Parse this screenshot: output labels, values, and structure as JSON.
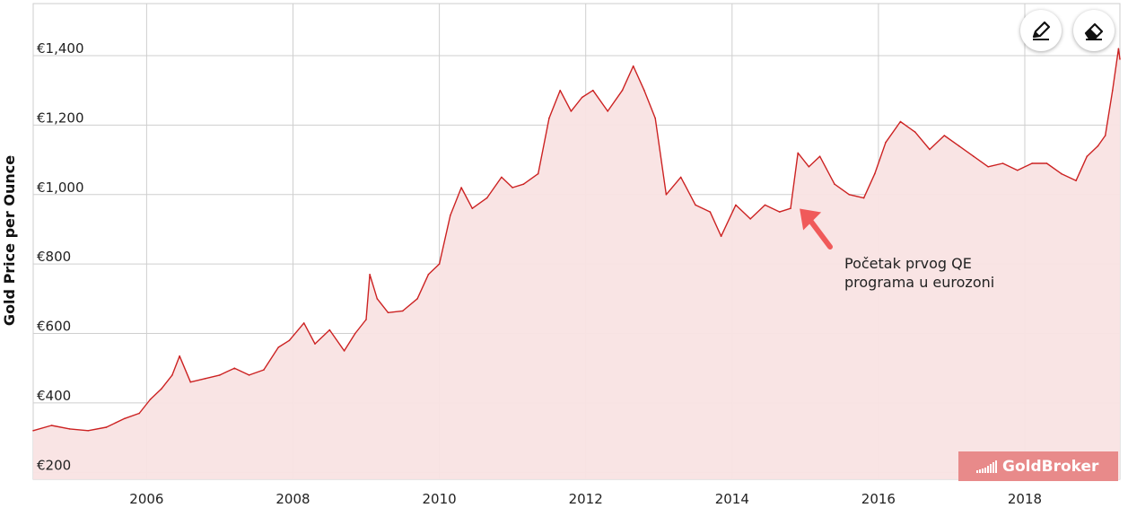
{
  "chart_data": {
    "type": "area",
    "ylabel": "Gold Price per Ounce",
    "xlabel": "",
    "title": "",
    "x_ticks": [
      "2006",
      "2008",
      "2010",
      "2012",
      "2014",
      "2016",
      "2018"
    ],
    "y_ticks": [
      "€200",
      "€400",
      "€600",
      "€800",
      "€1,000",
      "€1,200",
      "€1,400"
    ],
    "xlim": [
      2004.45,
      2019.3
    ],
    "ylim": [
      180,
      1550
    ],
    "grid": true,
    "series": [
      {
        "color": "#cc2222",
        "fill": "#f9e3e3",
        "points": [
          [
            2004.45,
            320
          ],
          [
            2004.7,
            335
          ],
          [
            2004.95,
            325
          ],
          [
            2005.2,
            320
          ],
          [
            2005.45,
            330
          ],
          [
            2005.7,
            355
          ],
          [
            2005.9,
            370
          ],
          [
            2006.05,
            410
          ],
          [
            2006.2,
            440
          ],
          [
            2006.35,
            480
          ],
          [
            2006.45,
            535
          ],
          [
            2006.6,
            460
          ],
          [
            2006.8,
            470
          ],
          [
            2007.0,
            480
          ],
          [
            2007.2,
            500
          ],
          [
            2007.4,
            480
          ],
          [
            2007.6,
            495
          ],
          [
            2007.8,
            560
          ],
          [
            2007.95,
            580
          ],
          [
            2008.15,
            630
          ],
          [
            2008.3,
            570
          ],
          [
            2008.5,
            610
          ],
          [
            2008.7,
            550
          ],
          [
            2008.85,
            600
          ],
          [
            2009.0,
            640
          ],
          [
            2009.05,
            770
          ],
          [
            2009.15,
            700
          ],
          [
            2009.3,
            660
          ],
          [
            2009.5,
            665
          ],
          [
            2009.7,
            700
          ],
          [
            2009.85,
            770
          ],
          [
            2010.0,
            800
          ],
          [
            2010.15,
            940
          ],
          [
            2010.3,
            1020
          ],
          [
            2010.45,
            960
          ],
          [
            2010.65,
            990
          ],
          [
            2010.85,
            1050
          ],
          [
            2011.0,
            1020
          ],
          [
            2011.15,
            1030
          ],
          [
            2011.35,
            1060
          ],
          [
            2011.5,
            1220
          ],
          [
            2011.65,
            1300
          ],
          [
            2011.8,
            1240
          ],
          [
            2011.95,
            1280
          ],
          [
            2012.1,
            1300
          ],
          [
            2012.3,
            1240
          ],
          [
            2012.5,
            1300
          ],
          [
            2012.65,
            1370
          ],
          [
            2012.8,
            1300
          ],
          [
            2012.95,
            1220
          ],
          [
            2013.1,
            1000
          ],
          [
            2013.3,
            1050
          ],
          [
            2013.5,
            970
          ],
          [
            2013.7,
            950
          ],
          [
            2013.85,
            880
          ],
          [
            2014.05,
            970
          ],
          [
            2014.25,
            930
          ],
          [
            2014.45,
            970
          ],
          [
            2014.65,
            950
          ],
          [
            2014.8,
            960
          ],
          [
            2014.9,
            1120
          ],
          [
            2015.05,
            1080
          ],
          [
            2015.2,
            1110
          ],
          [
            2015.4,
            1030
          ],
          [
            2015.6,
            1000
          ],
          [
            2015.8,
            990
          ],
          [
            2015.95,
            1060
          ],
          [
            2016.1,
            1150
          ],
          [
            2016.3,
            1210
          ],
          [
            2016.5,
            1180
          ],
          [
            2016.7,
            1130
          ],
          [
            2016.9,
            1170
          ],
          [
            2017.1,
            1140
          ],
          [
            2017.3,
            1110
          ],
          [
            2017.5,
            1080
          ],
          [
            2017.7,
            1090
          ],
          [
            2017.9,
            1070
          ],
          [
            2018.1,
            1090
          ],
          [
            2018.3,
            1090
          ],
          [
            2018.5,
            1060
          ],
          [
            2018.7,
            1040
          ],
          [
            2018.85,
            1110
          ],
          [
            2019.0,
            1140
          ],
          [
            2019.1,
            1170
          ],
          [
            2019.2,
            1300
          ],
          [
            2019.28,
            1420
          ],
          [
            2019.3,
            1390
          ]
        ]
      }
    ],
    "annotations": [
      {
        "lines": [
          "Početak prvog QE",
          "programa u eurozoni"
        ],
        "arrow_to": [
          2014.85,
          980
        ]
      }
    ]
  },
  "toolbar": {
    "pencil_icon": "pencil-icon",
    "eraser_icon": "eraser-icon"
  },
  "logo": {
    "text": "GoldBroker"
  }
}
